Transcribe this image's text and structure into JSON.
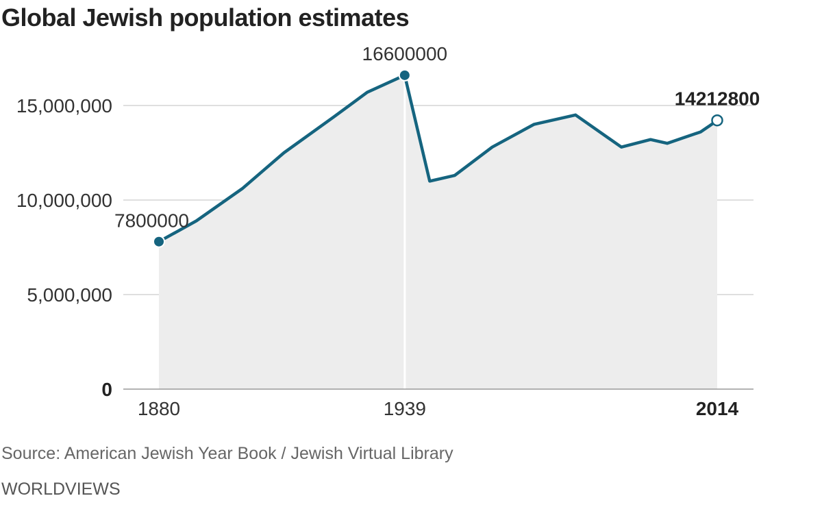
{
  "title": "Global Jewish population estimates",
  "source": "Source: American Jewish Year Book / Jewish Virtual Library",
  "credit": "WORLDVIEWS",
  "colors": {
    "line": "#15647f",
    "area": "#ededed",
    "grid": "#cccccc",
    "axis": "#999999"
  },
  "chart_data": {
    "type": "area",
    "title": "Global Jewish population estimates",
    "xlabel": "",
    "ylabel": "",
    "xlim": [
      1880,
      2014
    ],
    "ylim": [
      0,
      17000000
    ],
    "grid": true,
    "x_ticks": [
      {
        "value": 1880,
        "label": "1880"
      },
      {
        "value": 1939,
        "label": "1939"
      },
      {
        "value": 2014,
        "label": "2014",
        "bold": true
      }
    ],
    "y_ticks": [
      {
        "value": 0,
        "label": "0",
        "bold": true
      },
      {
        "value": 5000000,
        "label": "5,000,000"
      },
      {
        "value": 10000000,
        "label": "10,000,000"
      },
      {
        "value": 15000000,
        "label": "15,000,000"
      }
    ],
    "series": [
      {
        "x": [
          1880,
          1889,
          1900,
          1910,
          1922,
          1930,
          1939,
          1945,
          1951,
          1960,
          1970,
          1980,
          1991,
          1998,
          2002,
          2006,
          2010,
          2012,
          2014
        ],
        "y": [
          7800000,
          8900000,
          10600000,
          12500000,
          14400000,
          15700000,
          16600000,
          11000000,
          11300000,
          12800000,
          14000000,
          14500000,
          12800000,
          13200000,
          13000000,
          13300000,
          13600000,
          13900000,
          14212800
        ]
      }
    ],
    "highlighted_points": [
      {
        "x": 1880,
        "y": 7800000,
        "label": "7800000",
        "style": "filled"
      },
      {
        "x": 1939,
        "y": 16600000,
        "label": "16600000",
        "style": "filled"
      },
      {
        "x": 2014,
        "y": 14212800,
        "label": "14212800",
        "style": "open",
        "bold": true
      }
    ],
    "vertical_marker": 1939
  }
}
